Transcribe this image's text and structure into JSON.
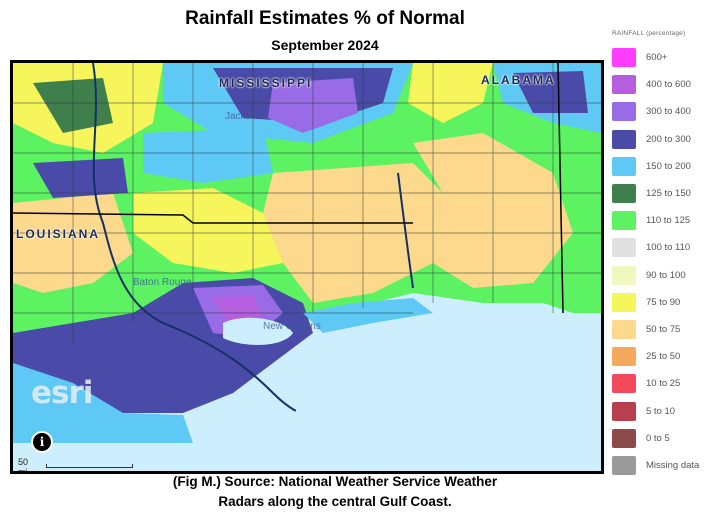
{
  "title": "Rainfall Estimates % of Normal",
  "subtitle": "September 2024",
  "map": {
    "state_labels": {
      "mississippi": "MISSISSIPPI",
      "alabama": "ALABAMA",
      "louisiana": "LOUISIANA"
    },
    "city_labels": {
      "jackson": "Jackson",
      "baton_rouge": "Baton Rouge",
      "new_orleans": "New Orleans"
    },
    "esri_logo": "esri",
    "info_icon_glyph": "i",
    "scale_label": "50 mi"
  },
  "caption": {
    "line1": "(Fig M.) Source: National Weather Service Weather",
    "line2": "Radars along the central Gulf Coast."
  },
  "legend": {
    "title": "RAINFALL (percentage)",
    "items": [
      {
        "label": "600+",
        "color": "#ff3cff"
      },
      {
        "label": "400 to 600",
        "color": "#b55ee0"
      },
      {
        "label": "300 to 400",
        "color": "#9a6be6"
      },
      {
        "label": "200 to 300",
        "color": "#4a4aa8"
      },
      {
        "label": "150 to 200",
        "color": "#5ec9f5"
      },
      {
        "label": "125 to 150",
        "color": "#3f7f4c"
      },
      {
        "label": "110 to 125",
        "color": "#5cf262"
      },
      {
        "label": "100 to 110",
        "color": "#e0e0e0"
      },
      {
        "label": "90 to 100",
        "color": "#f0f8c0"
      },
      {
        "label": "75 to 90",
        "color": "#f6f65c"
      },
      {
        "label": "50 to 75",
        "color": "#fcd98c"
      },
      {
        "label": "25 to 50",
        "color": "#f6a95c"
      },
      {
        "label": "10 to 25",
        "color": "#f24a5a"
      },
      {
        "label": "5 to 10",
        "color": "#b8404e"
      },
      {
        "label": "0 to 5",
        "color": "#8c4a4a"
      },
      {
        "label": "Missing data",
        "color": "#9a9a9a"
      }
    ]
  }
}
